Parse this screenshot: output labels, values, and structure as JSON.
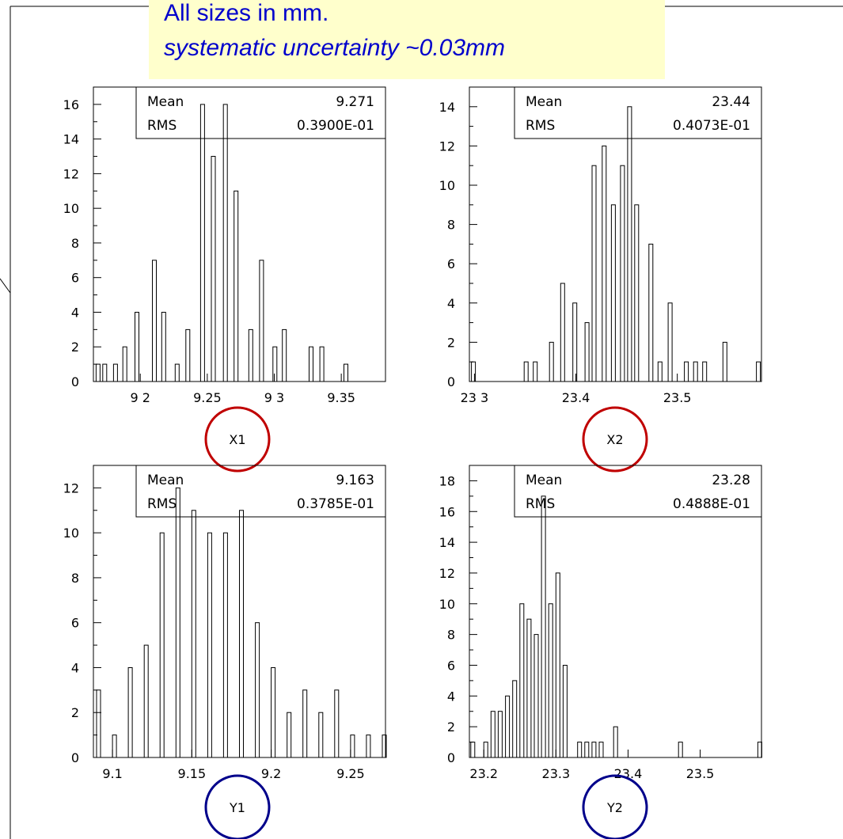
{
  "header": {
    "line1": "All sizes in mm.",
    "line2": "systematic uncertainty ~0.03mm"
  },
  "colors": {
    "note_background": "#ffffcc",
    "note_text": "#0000cc",
    "x_circle": "#c00000",
    "y_circle": "#00008b"
  },
  "chart_data": [
    {
      "type": "bar",
      "label": "X1",
      "xlim": [
        9.165,
        9.383
      ],
      "ylim": [
        0,
        17
      ],
      "yticks": [
        0,
        2,
        4,
        6,
        8,
        10,
        12,
        14,
        16
      ],
      "xticks": [
        {
          "value": 9.2,
          "label": "9 2"
        },
        {
          "value": 9.25,
          "label": "9.25"
        },
        {
          "value": 9.3,
          "label": "9 3"
        },
        {
          "value": 9.35,
          "label": "9.35"
        }
      ],
      "stats": {
        "mean_label": "Mean",
        "mean": "9.271",
        "rms_label": "RMS",
        "rms": "0.3900E-01"
      },
      "bars": [
        {
          "x": 9.167,
          "y": 1
        },
        {
          "x": 9.172,
          "y": 1
        },
        {
          "x": 9.18,
          "y": 1
        },
        {
          "x": 9.187,
          "y": 2
        },
        {
          "x": 9.196,
          "y": 4
        },
        {
          "x": 9.209,
          "y": 7
        },
        {
          "x": 9.216,
          "y": 4
        },
        {
          "x": 9.226,
          "y": 1
        },
        {
          "x": 9.234,
          "y": 3
        },
        {
          "x": 9.245,
          "y": 16
        },
        {
          "x": 9.253,
          "y": 13
        },
        {
          "x": 9.262,
          "y": 16
        },
        {
          "x": 9.27,
          "y": 11
        },
        {
          "x": 9.281,
          "y": 3
        },
        {
          "x": 9.289,
          "y": 7
        },
        {
          "x": 9.299,
          "y": 2
        },
        {
          "x": 9.306,
          "y": 3
        },
        {
          "x": 9.326,
          "y": 2
        },
        {
          "x": 9.334,
          "y": 2
        },
        {
          "x": 9.352,
          "y": 1
        }
      ]
    },
    {
      "type": "bar",
      "label": "X2",
      "xlim": [
        23.295,
        23.583
      ],
      "ylim": [
        0,
        15
      ],
      "yticks": [
        0,
        2,
        4,
        6,
        8,
        10,
        12,
        14
      ],
      "xticks": [
        {
          "value": 23.3,
          "label": "23 3"
        },
        {
          "value": 23.4,
          "label": "23.4"
        },
        {
          "value": 23.5,
          "label": "23.5"
        }
      ],
      "stats": {
        "mean_label": "Mean",
        "mean": "23.44",
        "rms_label": "RMS",
        "rms": "0.4073E-01"
      },
      "bars": [
        {
          "x": 23.297,
          "y": 1
        },
        {
          "x": 23.349,
          "y": 1
        },
        {
          "x": 23.358,
          "y": 1
        },
        {
          "x": 23.374,
          "y": 2
        },
        {
          "x": 23.385,
          "y": 5
        },
        {
          "x": 23.397,
          "y": 4
        },
        {
          "x": 23.409,
          "y": 3
        },
        {
          "x": 23.416,
          "y": 11
        },
        {
          "x": 23.426,
          "y": 12
        },
        {
          "x": 23.435,
          "y": 9
        },
        {
          "x": 23.444,
          "y": 11
        },
        {
          "x": 23.451,
          "y": 14
        },
        {
          "x": 23.458,
          "y": 9
        },
        {
          "x": 23.472,
          "y": 7
        },
        {
          "x": 23.481,
          "y": 1
        },
        {
          "x": 23.491,
          "y": 4
        },
        {
          "x": 23.507,
          "y": 1
        },
        {
          "x": 23.516,
          "y": 1
        },
        {
          "x": 23.525,
          "y": 1
        },
        {
          "x": 23.545,
          "y": 2
        },
        {
          "x": 23.578,
          "y": 1
        }
      ]
    },
    {
      "type": "bar",
      "label": "Y1",
      "xlim": [
        9.088,
        9.272
      ],
      "ylim": [
        0,
        13
      ],
      "yticks": [
        0,
        2,
        4,
        6,
        8,
        10,
        12
      ],
      "xticks": [
        {
          "value": 9.1,
          "label": "9.1"
        },
        {
          "value": 9.15,
          "label": "9.15"
        },
        {
          "value": 9.2,
          "label": "9.2"
        },
        {
          "value": 9.25,
          "label": "9.25"
        }
      ],
      "stats": {
        "mean_label": "Mean",
        "mean": "9.163",
        "rms_label": "RMS",
        "rms": "0.3785E-01"
      },
      "bars": [
        {
          "x": 9.09,
          "y": 3
        },
        {
          "x": 9.1,
          "y": 1
        },
        {
          "x": 9.11,
          "y": 4
        },
        {
          "x": 9.12,
          "y": 5
        },
        {
          "x": 9.13,
          "y": 10
        },
        {
          "x": 9.14,
          "y": 12
        },
        {
          "x": 9.15,
          "y": 11
        },
        {
          "x": 9.16,
          "y": 10
        },
        {
          "x": 9.17,
          "y": 10
        },
        {
          "x": 9.18,
          "y": 11
        },
        {
          "x": 9.19,
          "y": 6
        },
        {
          "x": 9.2,
          "y": 4
        },
        {
          "x": 9.21,
          "y": 2
        },
        {
          "x": 9.22,
          "y": 3
        },
        {
          "x": 9.23,
          "y": 2
        },
        {
          "x": 9.24,
          "y": 3
        },
        {
          "x": 9.25,
          "y": 1
        },
        {
          "x": 9.26,
          "y": 1
        },
        {
          "x": 9.27,
          "y": 1
        }
      ]
    },
    {
      "type": "bar",
      "label": "Y2",
      "xlim": [
        23.18,
        23.585
      ],
      "ylim": [
        0,
        19
      ],
      "yticks": [
        0,
        2,
        4,
        6,
        8,
        10,
        12,
        14,
        16,
        18
      ],
      "xticks": [
        {
          "value": 23.2,
          "label": "23.2"
        },
        {
          "value": 23.3,
          "label": "23.3"
        },
        {
          "value": 23.4,
          "label": "23.4"
        },
        {
          "value": 23.5,
          "label": "23.5"
        }
      ],
      "stats": {
        "mean_label": "Mean",
        "mean": "23.28",
        "rms_label": "RMS",
        "rms": "0.4888E-01"
      },
      "bars": [
        {
          "x": 23.182,
          "y": 1
        },
        {
          "x": 23.2,
          "y": 1
        },
        {
          "x": 23.21,
          "y": 3
        },
        {
          "x": 23.22,
          "y": 3
        },
        {
          "x": 23.23,
          "y": 4
        },
        {
          "x": 23.24,
          "y": 5
        },
        {
          "x": 23.25,
          "y": 10
        },
        {
          "x": 23.26,
          "y": 9
        },
        {
          "x": 23.27,
          "y": 8
        },
        {
          "x": 23.28,
          "y": 17
        },
        {
          "x": 23.29,
          "y": 10
        },
        {
          "x": 23.3,
          "y": 12
        },
        {
          "x": 23.31,
          "y": 6
        },
        {
          "x": 23.33,
          "y": 1
        },
        {
          "x": 23.34,
          "y": 1
        },
        {
          "x": 23.35,
          "y": 1
        },
        {
          "x": 23.36,
          "y": 1
        },
        {
          "x": 23.38,
          "y": 2
        },
        {
          "x": 23.47,
          "y": 1
        },
        {
          "x": 23.58,
          "y": 1
        }
      ]
    }
  ]
}
